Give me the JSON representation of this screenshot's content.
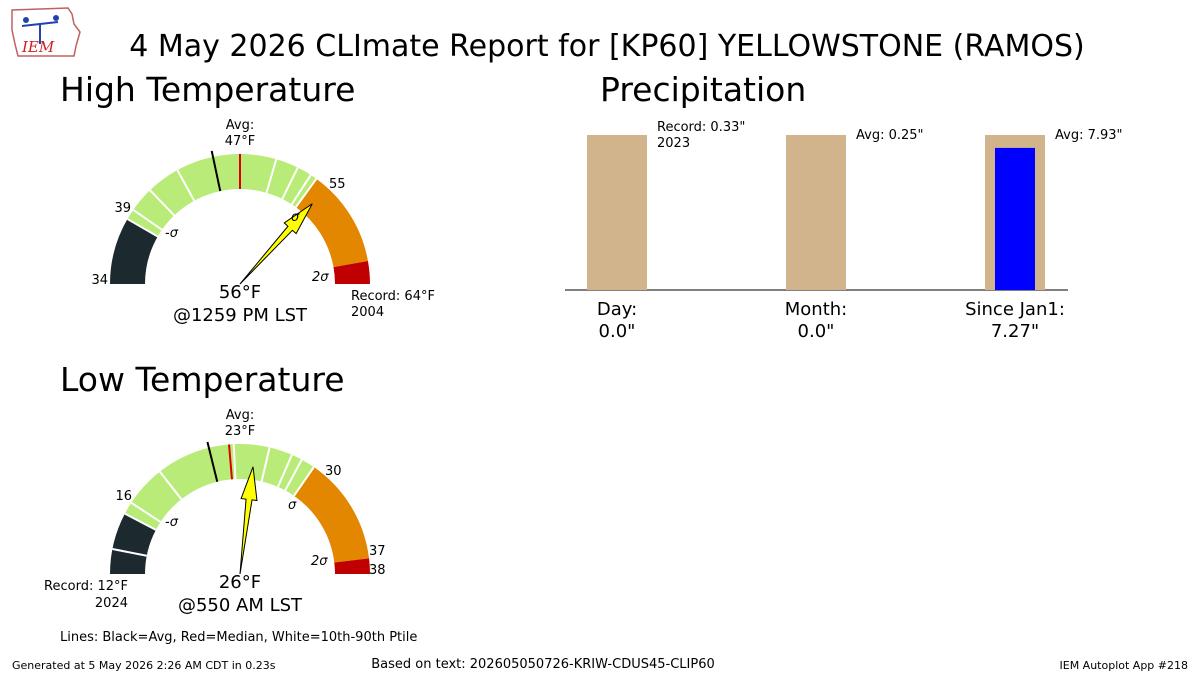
{
  "page": {
    "title": "4 May 2026 CLImate Report for [KP60] YELLOWSTONE (RAMOS)",
    "logo_text": "IEM",
    "lines_legend": "Lines: Black=Avg, Red=Median, White=10th-90th Ptile",
    "generated": "Generated at 5 May 2026 2:26 AM CDT in 0.23s",
    "based_on": "Based on text: 202605050726-KRIW-CDUS45-CLIP60",
    "app": "IEM Autoplot App #218"
  },
  "colors": {
    "dark": "#1c2a30",
    "green": "#b8eb78",
    "orange": "#e38600",
    "red": "#c00000",
    "needle": "#ffff00",
    "median": "#dd0000",
    "tan": "#d2b48c",
    "blue": "#0000ff"
  },
  "chart_data": [
    {
      "type": "gauge",
      "title": "High Temperature",
      "units": "°F",
      "range": [
        34,
        64
      ],
      "observed": 56,
      "observed_label": "56°F",
      "time_label": "@1259 PM LST",
      "avg": 47,
      "avg_label": "Avg:",
      "avg_value_label": "47°F",
      "median": 49,
      "minus_sigma": 39,
      "plus_sigma": 55,
      "plus_2sigma": 62.3,
      "record": 64,
      "record_label": "Record: 64°F",
      "record_year": "2004",
      "percentile_lines": [
        39.8,
        41.7,
        44.2,
        51.7,
        53.4,
        54.5
      ],
      "tick_labels": [
        "34",
        "39",
        "55"
      ],
      "sigma_labels": {
        "minus": "-σ",
        "plus": "σ",
        "plus2": "2σ"
      }
    },
    {
      "type": "gauge",
      "title": "Low Temperature",
      "units": "°F",
      "range": [
        12,
        38
      ],
      "observed": 26,
      "observed_label": "26°F",
      "time_label": "@550 AM LST",
      "avg": 23,
      "avg_label": "Avg:",
      "avg_value_label": "23°F",
      "median": 24.3,
      "minus_sigma": 16,
      "plus_sigma": 30,
      "plus_2sigma": 37,
      "record": 12,
      "record_label": "Record: 12°F",
      "record_year": "2024",
      "percentile_lines": [
        13.6,
        16.8,
        19.5,
        24.6,
        26.9,
        28.4,
        29.1
      ],
      "tick_labels": [
        "16",
        "30",
        "37",
        "38"
      ],
      "sigma_labels": {
        "minus": "-σ",
        "plus": "σ",
        "plus2": "2σ"
      }
    },
    {
      "type": "bar",
      "title": "Precipitation",
      "units": "inches",
      "categories": [
        "Day:",
        "Month:",
        "Since Jan1:"
      ],
      "observed": [
        0.0,
        0.0,
        7.27
      ],
      "observed_labels": [
        "0.0\"",
        "0.0\"",
        "7.27\""
      ],
      "reference": [
        0.33,
        0.25,
        7.93
      ],
      "reference_labels": [
        "Record: 0.33\"",
        "Avg: 0.25\"",
        "Avg: 7.93\""
      ],
      "reference_year": "2023",
      "note": "bars normalized to each reference value"
    }
  ]
}
